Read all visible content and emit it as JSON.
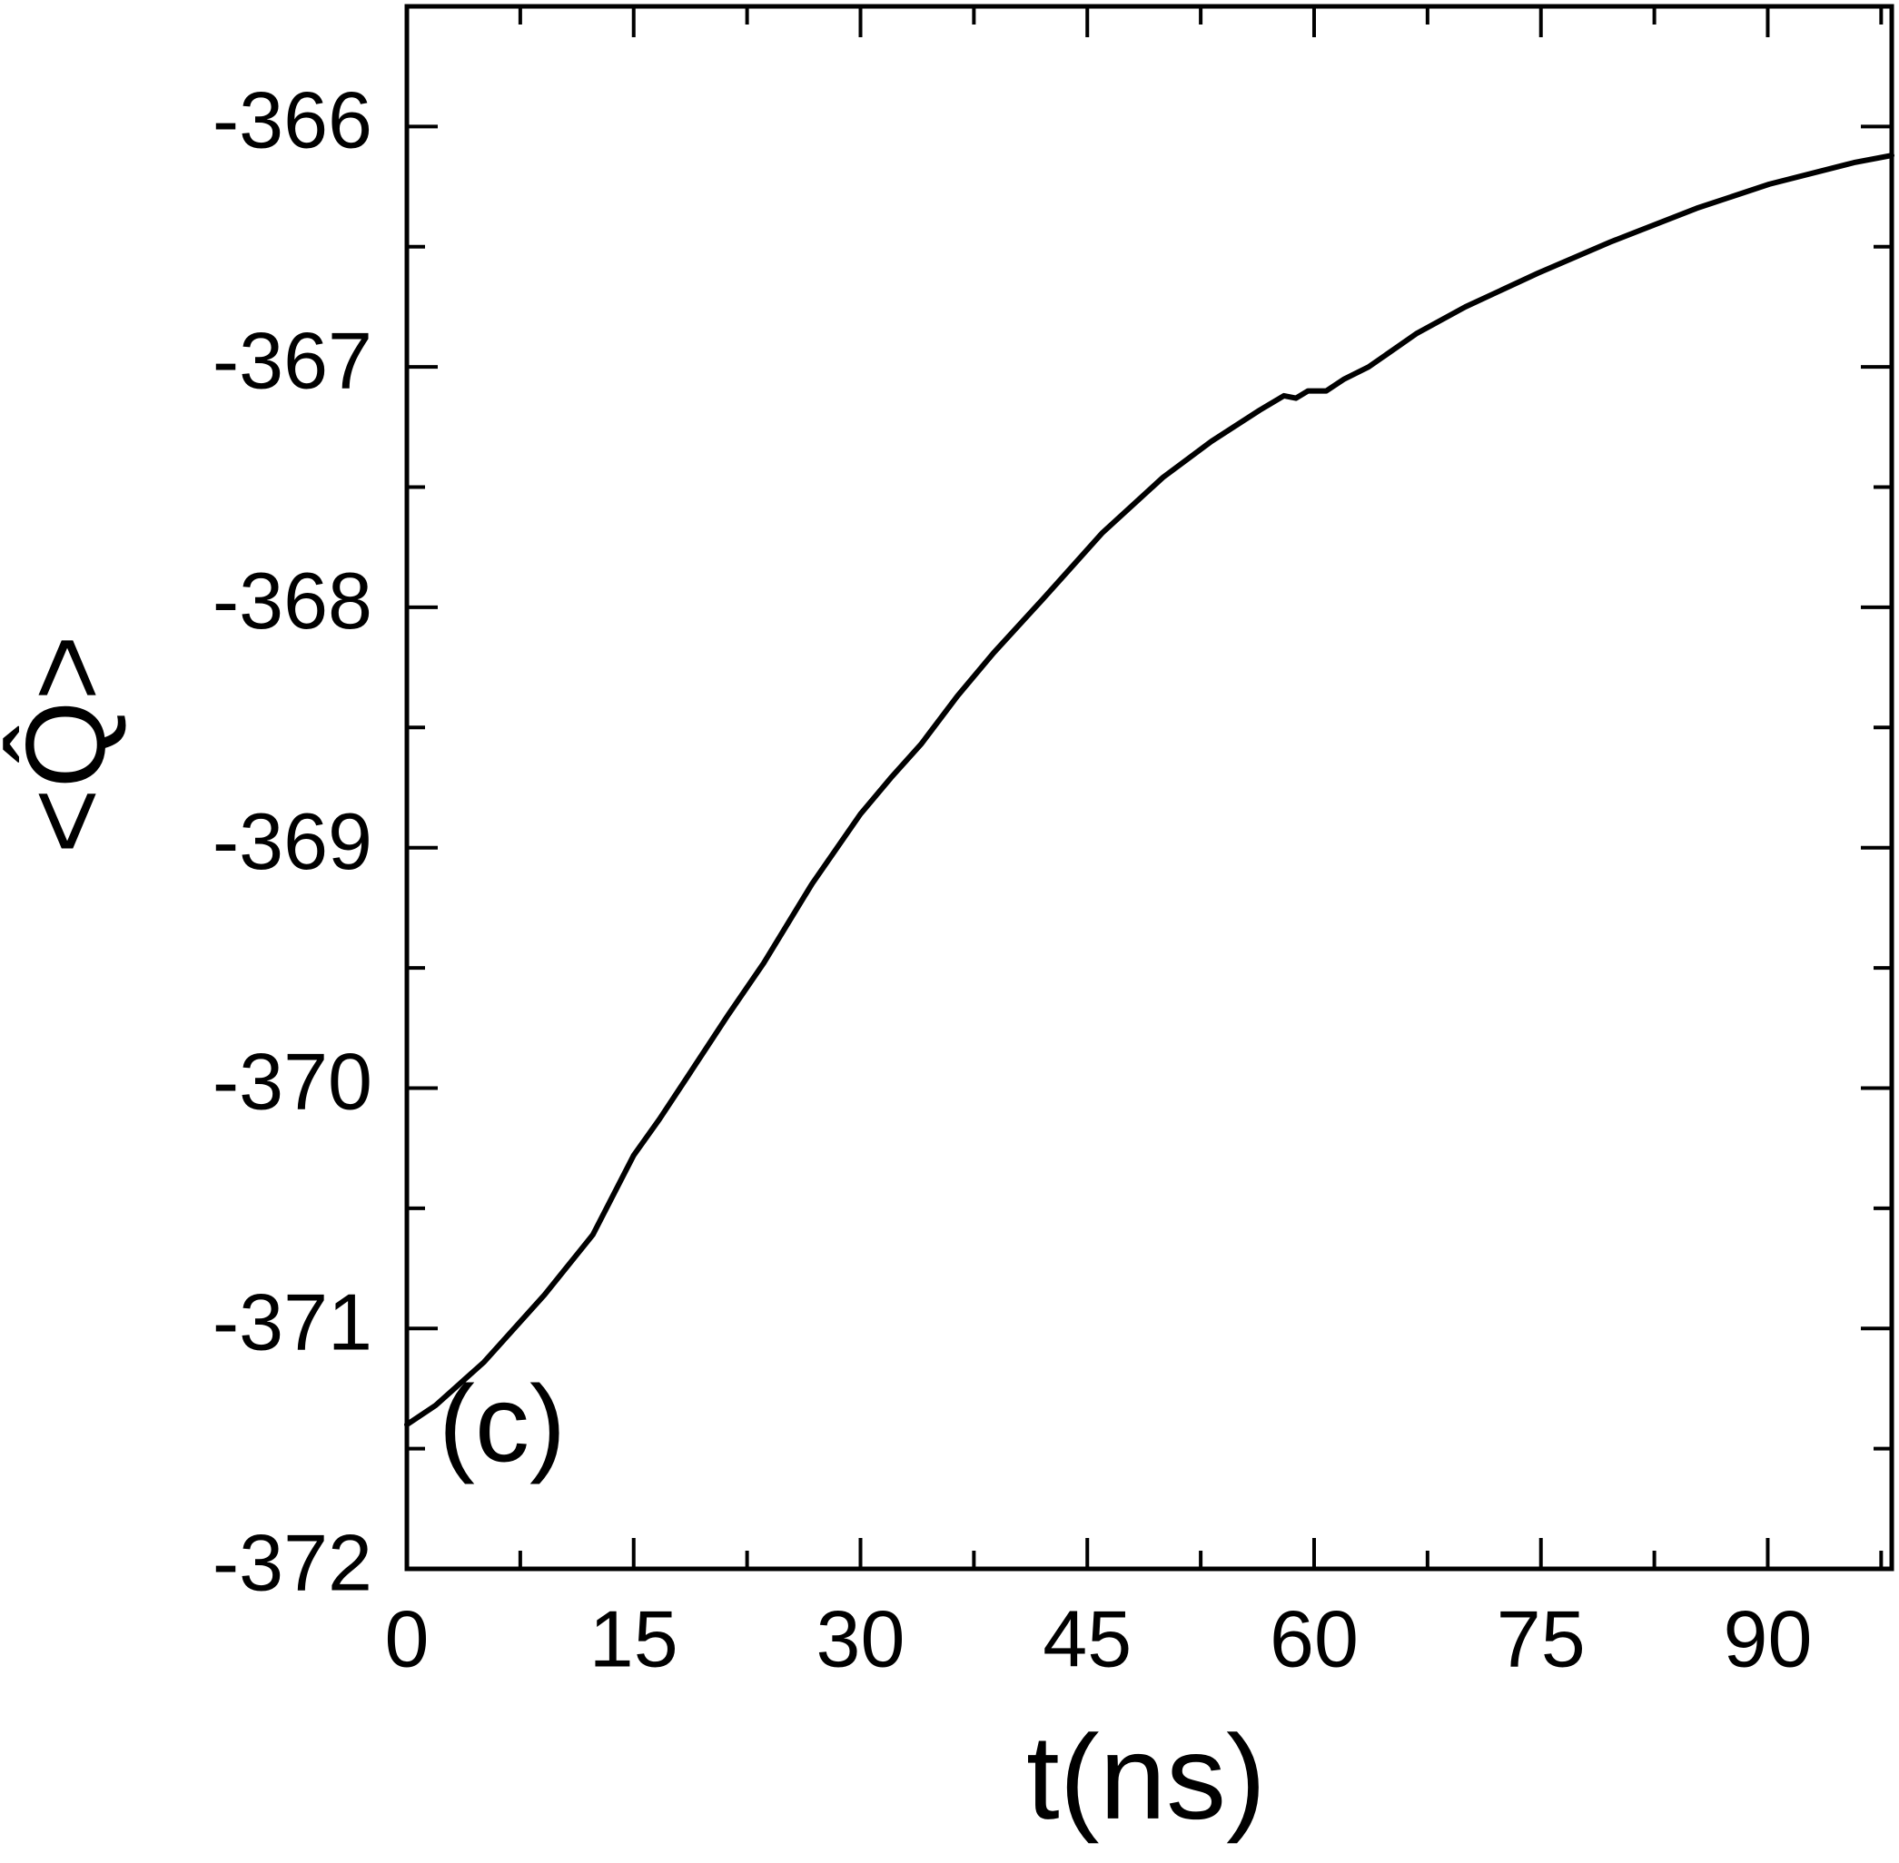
{
  "chart_data": {
    "type": "line",
    "x_label": "t(ns)",
    "y_label": "<Q̂>",
    "annotation": "(c)",
    "series": [
      {
        "color": "#000000",
        "x": [
          0,
          1.9,
          5.1,
          9.1,
          12.3,
          15,
          16.7,
          18.8,
          21.2,
          23.6,
          26.8,
          30,
          32,
          34,
          36.4,
          38.8,
          42,
          46,
          50,
          53.2,
          56.4,
          58,
          58.8,
          59.6,
          60.8,
          62,
          63.6,
          66.8,
          70,
          74.8,
          79.6,
          85.3,
          90.1,
          95.7,
          98.2
        ],
        "values": [
          -371.4,
          -371.32,
          -371.14,
          -370.86,
          -370.61,
          -370.28,
          -370.13,
          -369.93,
          -369.7,
          -369.48,
          -369.15,
          -368.86,
          -368.71,
          -368.57,
          -368.37,
          -368.19,
          -367.97,
          -367.69,
          -367.46,
          -367.31,
          -367.18,
          -367.12,
          -367.13,
          -367.1,
          -367.1,
          -367.05,
          -367.0,
          -366.86,
          -366.75,
          -366.61,
          -366.48,
          -366.34,
          -366.24,
          -366.15,
          -366.12
        ]
      }
    ],
    "xlim": [
      0,
      98.2
    ],
    "xticks": [
      0,
      15,
      30,
      45,
      60,
      75,
      90
    ],
    "ylim": [
      -372,
      -365.5
    ],
    "yticks": [
      -372,
      -371,
      -370,
      -369,
      -368,
      -367,
      -366
    ],
    "grid": false
  }
}
